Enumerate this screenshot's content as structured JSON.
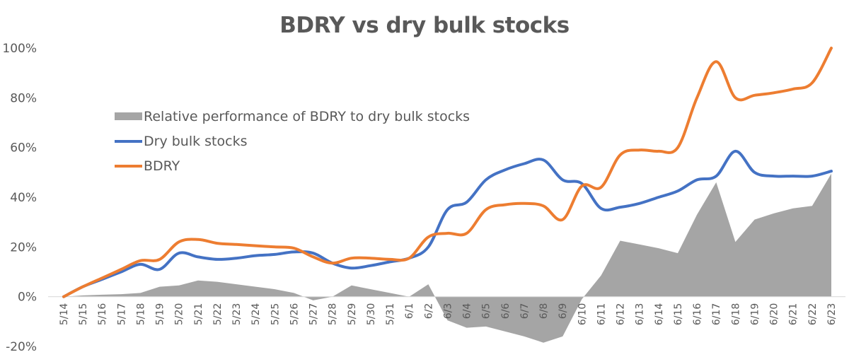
{
  "chart_data": {
    "type": "line",
    "title": "BDRY vs dry bulk stocks",
    "xlabel": "",
    "ylabel": "",
    "ylim": [
      -20,
      100
    ],
    "yticks": [
      "-20%",
      "0%",
      "20%",
      "40%",
      "60%",
      "80%",
      "100%"
    ],
    "grid": false,
    "legend_position": "upper-left inside plot",
    "categories": [
      "5/14",
      "5/15",
      "5/16",
      "5/17",
      "5/18",
      "5/19",
      "5/20",
      "5/21",
      "5/22",
      "5/23",
      "5/24",
      "5/25",
      "5/26",
      "5/27",
      "5/28",
      "5/29",
      "5/30",
      "5/31",
      "6/1",
      "6/2",
      "6/3",
      "6/4",
      "6/5",
      "6/6",
      "6/7",
      "6/8",
      "6/9",
      "6/10",
      "6/11",
      "6/12",
      "6/13",
      "6/14",
      "6/15",
      "6/16",
      "6/17",
      "6/18",
      "6/19",
      "6/20",
      "6/21",
      "6/22",
      "6/23"
    ],
    "series": [
      {
        "name": "Relative performance of BDRY to dry bulk stocks",
        "type": "area",
        "color": "#a5a5a5",
        "values": [
          0,
          0.5,
          0.8,
          1,
          1.5,
          4,
          4.5,
          6.5,
          6,
          5,
          4,
          3,
          1.5,
          -1.5,
          0,
          4.5,
          3,
          1.5,
          0,
          5,
          -9.5,
          -12.5,
          -12,
          -14,
          -16,
          -18.5,
          -16,
          -1,
          8.5,
          22.5,
          21,
          19.5,
          17.5,
          33,
          46,
          22,
          31,
          33.5,
          35.5,
          36.5,
          49.5
        ]
      },
      {
        "name": "Dry bulk stocks",
        "type": "line",
        "color": "#4472c4",
        "values": [
          0,
          4,
          7,
          10,
          13,
          11,
          17.5,
          16,
          15,
          15.5,
          16.5,
          17,
          18,
          17.5,
          13.5,
          11.5,
          12.5,
          14,
          15.5,
          20,
          35,
          38,
          47,
          51,
          53.5,
          55,
          47,
          45.5,
          35.5,
          36,
          37.5,
          40,
          42.5,
          47,
          48.5,
          58.5,
          50,
          48.5,
          48.5,
          48.5,
          50.5
        ]
      },
      {
        "name": "BDRY",
        "type": "line",
        "color": "#ed7d31",
        "values": [
          0,
          4,
          7.5,
          11,
          14.5,
          15,
          22,
          23,
          21.5,
          21,
          20.5,
          20,
          19.5,
          16,
          13.5,
          15.5,
          15.5,
          15,
          15.5,
          24,
          25.5,
          25.5,
          35,
          37,
          37.5,
          36.5,
          31,
          44.5,
          44,
          57,
          59,
          58.5,
          60,
          80,
          94.5,
          80,
          81,
          82,
          83.5,
          86,
          100
        ]
      }
    ]
  }
}
